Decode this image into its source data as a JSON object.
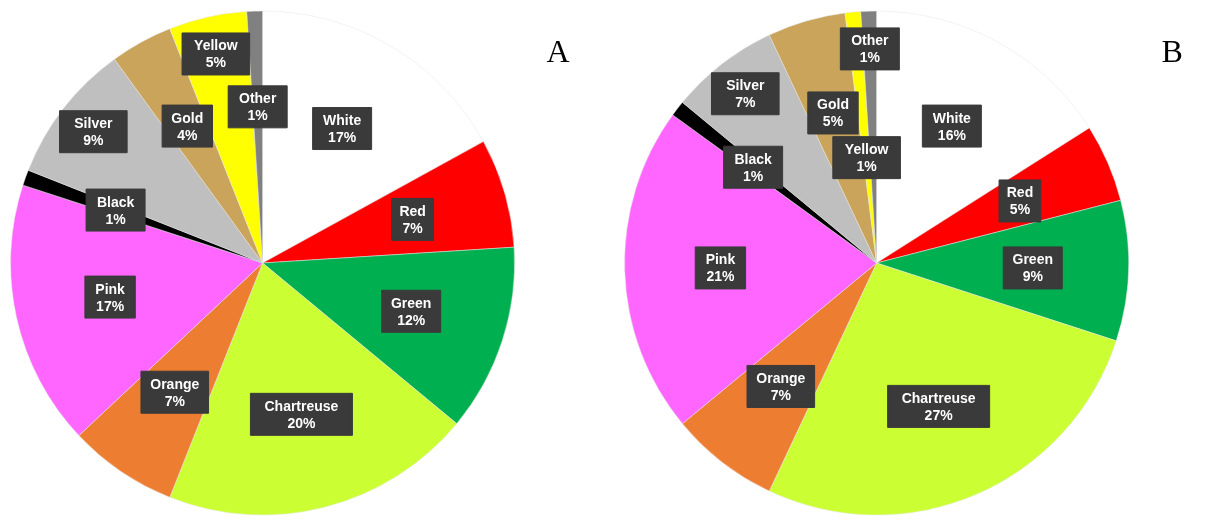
{
  "chart_data": [
    {
      "type": "pie",
      "title": "A",
      "categories": [
        "White",
        "Red",
        "Green",
        "Chartreuse",
        "Orange",
        "Pink",
        "Black",
        "Silver",
        "Gold",
        "Yellow",
        "Other"
      ],
      "values": [
        17,
        7,
        12,
        20,
        7,
        17,
        1,
        9,
        4,
        5,
        1
      ],
      "value_labels": [
        "17%",
        "7%",
        "12%",
        "20%",
        "7%",
        "17%",
        "1%",
        "9%",
        "4%",
        "5%",
        "1%"
      ],
      "colors": [
        "#ffffff",
        "#ff0000",
        "#00b050",
        "#ccff33",
        "#ed7d31",
        "#ff66ff",
        "#000000",
        "#bfbfbf",
        "#c9a45a",
        "#ffff00",
        "#808080"
      ]
    },
    {
      "type": "pie",
      "title": "B",
      "categories": [
        "White",
        "Red",
        "Green",
        "Chartreuse",
        "Orange",
        "Pink",
        "Black",
        "Silver",
        "Gold",
        "Yellow",
        "Other"
      ],
      "values": [
        16,
        5,
        9,
        27,
        7,
        21,
        1,
        7,
        5,
        1,
        1
      ],
      "value_labels": [
        "16%",
        "5%",
        "9%",
        "27%",
        "7%",
        "21%",
        "1%",
        "7%",
        "5%",
        "1%",
        "1%"
      ],
      "colors": [
        "#ffffff",
        "#ff0000",
        "#00b050",
        "#ccff33",
        "#ed7d31",
        "#ff66ff",
        "#000000",
        "#bfbfbf",
        "#c9a45a",
        "#ffff00",
        "#808080"
      ]
    }
  ]
}
